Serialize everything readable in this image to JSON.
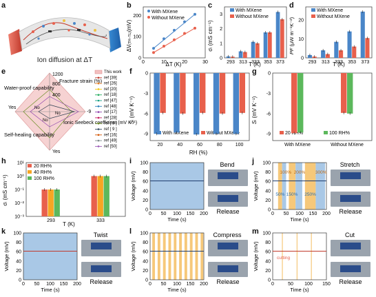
{
  "labels": {
    "a": "a",
    "b": "b",
    "c": "c",
    "d": "d",
    "e": "e",
    "f": "f",
    "g": "g",
    "h": "h",
    "i": "i",
    "j": "j",
    "k": "k",
    "l": "l",
    "m": "m"
  },
  "colors": {
    "blue": "#4a86c8",
    "red": "#e8604c",
    "green": "#5cb85c",
    "orange": "#f6c87a",
    "lightblue": "#a9c8e6",
    "pink": "#f3c0c0",
    "darkred": "#c0392b",
    "olive": "#6b8e23"
  },
  "panel_a": {
    "caption": "Ion diffusion at ΔT"
  },
  "panel_b": {
    "ylabel": "ΔV",
    "ylabel_sub": "(TH−TL)",
    "ylabel_unit": "(mV)",
    "xlabel": "ΔT (K)",
    "legend": [
      "With MXene",
      "Without MXene"
    ],
    "yticks": [
      "0",
      "100",
      "200"
    ],
    "xticks": [
      "0",
      "10",
      "20",
      "30"
    ]
  },
  "panel_c": {
    "ylabel": "σ",
    "ylabel_sub": "i",
    "ylabel_unit": "(mS cm⁻¹)",
    "xlabel": "T (K)",
    "legend": [
      "With MXene",
      "Without MXene"
    ],
    "yticks": [
      "0",
      "1",
      "2",
      "3"
    ],
    "xticks": [
      "293",
      "313",
      "333",
      "353",
      "373"
    ]
  },
  "panel_d": {
    "ylabel": "PF",
    "ylabel_unit": "(μW m⁻¹K⁻²)",
    "xlabel": "T (K)",
    "legend": [
      "With MXene",
      "Without MXene"
    ],
    "yticks": [
      "0",
      "10",
      "20"
    ],
    "xticks": [
      "293",
      "313",
      "333",
      "353",
      "373"
    ]
  },
  "panel_e": {
    "axes": [
      "Water-proof capability",
      "Fracture strain (%)",
      "Ionic Seebeck coefficient (mV K⁻¹)",
      "Self-healing capability"
    ],
    "ticks": [
      "1200",
      "800",
      "400"
    ],
    "tick_ionic": "-9",
    "yes_no": [
      "Yes",
      "No",
      "No",
      "Yes",
      "No"
    ],
    "legend": [
      "This work",
      "ref [39]",
      "ref [26]",
      "ref [20]",
      "ref [18]",
      "ref [47]",
      "ref [48]",
      "ref [17]",
      "ref [28]",
      "ref [ 8 ]",
      "ref [ 9 ]",
      "ref [16]",
      "ref [49]",
      "ref [50]"
    ]
  },
  "panel_f": {
    "ylabel": "S",
    "ylabel_sub": "i",
    "ylabel_unit": "(mV K⁻¹)",
    "xlabel": "RH (%)",
    "legend": [
      "With MXene",
      "Without MXene"
    ],
    "yticks": [
      "0",
      "-3",
      "-6",
      "-9"
    ],
    "xticks": [
      "20",
      "40",
      "60",
      "80",
      "100"
    ]
  },
  "panel_g": {
    "ylabel": "S",
    "ylabel_sub": "i",
    "ylabel_unit": "(mV K⁻¹)",
    "legend": [
      "20 RH%",
      "100 RH%"
    ],
    "yticks": [
      "0",
      "-3",
      "-6",
      "-9"
    ],
    "xticks": [
      "With MXene",
      "Without MXene"
    ]
  },
  "panel_h": {
    "ylabel": "σ",
    "ylabel_sub": "i",
    "ylabel_unit": "(mS cm⁻¹)",
    "xlabel": "T (K)",
    "legend": [
      "20 RH%",
      "40 RH%",
      "100 RH%"
    ],
    "yticks": [
      "10⁰",
      "10⁻¹",
      "10⁻²",
      "10⁻³"
    ],
    "yticks_top": "10¹",
    "xticks": [
      "293",
      "333"
    ]
  },
  "volt_panels": {
    "ylabel": "Voltage (mV)",
    "xlabel": "Time (s)",
    "yticks": [
      "0",
      "20",
      "40",
      "60",
      "80",
      "100"
    ],
    "xticks200": [
      "0",
      "50",
      "100",
      "150",
      "200"
    ],
    "xticks150": [
      "0",
      "50",
      "100",
      "150"
    ]
  },
  "panel_i": {
    "title": "Bend",
    "sub": "Release"
  },
  "panel_j": {
    "title": "Stretch",
    "sub": "Release",
    "strains": [
      "100%",
      "200%",
      "300%",
      "50%",
      "150%",
      "250%"
    ]
  },
  "panel_k": {
    "title": "Twist",
    "sub": "Release"
  },
  "panel_l": {
    "title": "Compress",
    "sub": "Release"
  },
  "panel_m": {
    "title": "Cut",
    "sub": "Release",
    "annotation": "cutting"
  },
  "chart_data": [
    {
      "panel": "b",
      "type": "scatter",
      "title": "",
      "xlabel": "ΔT (K)",
      "ylabel": "ΔV(TH−TL) (mV)",
      "xlim": [
        0,
        30
      ],
      "ylim": [
        0,
        240
      ],
      "series": [
        {
          "name": "With MXene",
          "x": [
            5,
            10,
            15,
            20,
            25
          ],
          "y": [
            45,
            90,
            130,
            170,
            205
          ]
        },
        {
          "name": "Without MXene",
          "x": [
            5,
            10,
            15,
            20,
            25
          ],
          "y": [
            25,
            55,
            85,
            115,
            140
          ]
        }
      ]
    },
    {
      "panel": "c",
      "type": "bar",
      "xlabel": "T (K)",
      "ylabel": "σi (mS cm⁻¹)",
      "ylim": [
        0,
        3.5
      ],
      "categories": [
        "293",
        "313",
        "333",
        "353",
        "373"
      ],
      "series": [
        {
          "name": "With MXene",
          "values": [
            0.1,
            0.45,
            1.1,
            1.75,
            3.15
          ]
        },
        {
          "name": "Without MXene",
          "values": [
            0.08,
            0.4,
            1.0,
            1.75,
            2.65
          ]
        }
      ]
    },
    {
      "panel": "d",
      "type": "bar",
      "xlabel": "T (K)",
      "ylabel": "PF (μW m⁻¹K⁻²)",
      "ylim": [
        0,
        27
      ],
      "categories": [
        "293",
        "313",
        "333",
        "353",
        "373"
      ],
      "series": [
        {
          "name": "With MXene",
          "values": [
            1.5,
            4,
            8.5,
            14,
            24.5
          ]
        },
        {
          "name": "Without MXene",
          "values": [
            0.7,
            2,
            4,
            6,
            10.5
          ]
        }
      ]
    },
    {
      "panel": "f",
      "type": "bar",
      "xlabel": "RH (%)",
      "ylabel": "Si (mV K⁻¹)",
      "ylim": [
        -10,
        0
      ],
      "categories": [
        "20",
        "40",
        "60",
        "80",
        "100"
      ],
      "series": [
        {
          "name": "With MXene",
          "values": [
            -9,
            -8.8,
            -9.1,
            -9,
            -9
          ]
        },
        {
          "name": "Without MXene",
          "values": [
            -5.9,
            -6,
            -5.9,
            -6,
            -5.9
          ]
        }
      ]
    },
    {
      "panel": "g",
      "type": "bar",
      "ylabel": "Si (mV K⁻¹)",
      "ylim": [
        -10,
        0
      ],
      "categories": [
        "With MXene",
        "Without MXene"
      ],
      "series": [
        {
          "name": "20 RH%",
          "values": [
            -8.9,
            -5.9
          ]
        },
        {
          "name": "100 RH%",
          "values": [
            -8.8,
            -6.0
          ]
        }
      ]
    },
    {
      "panel": "h",
      "type": "bar",
      "xlabel": "T (K)",
      "ylabel": "σi (mS cm⁻¹)",
      "ylim": [
        0.001,
        10
      ],
      "categories": [
        "293",
        "333"
      ],
      "series": [
        {
          "name": "20 RH%",
          "values": [
            0.1,
            1.0
          ]
        },
        {
          "name": "40 RH%",
          "values": [
            0.1,
            1.0
          ]
        },
        {
          "name": "100 RH%",
          "values": [
            0.1,
            1.0
          ]
        }
      ]
    },
    {
      "panel": "i",
      "type": "line",
      "xlabel": "Time (s)",
      "ylabel": "Voltage (mV)",
      "xlim": [
        0,
        200
      ],
      "ylim": [
        0,
        100
      ],
      "series": [
        {
          "x": [
            0,
            200
          ],
          "y": [
            61,
            61
          ]
        }
      ]
    },
    {
      "panel": "j",
      "type": "line",
      "xlabel": "Time (s)",
      "ylabel": "Voltage (mV)",
      "xlim": [
        0,
        200
      ],
      "ylim": [
        0,
        100
      ],
      "series": [
        {
          "x": [
            0,
            200
          ],
          "y": [
            61,
            61
          ]
        }
      ]
    },
    {
      "panel": "k",
      "type": "line",
      "xlabel": "Time (s)",
      "ylabel": "Voltage (mV)",
      "xlim": [
        0,
        200
      ],
      "ylim": [
        0,
        100
      ],
      "series": [
        {
          "x": [
            0,
            200
          ],
          "y": [
            61,
            61
          ]
        }
      ]
    },
    {
      "panel": "l",
      "type": "line",
      "xlabel": "Time (s)",
      "ylabel": "Voltage (mV)",
      "xlim": [
        0,
        200
      ],
      "ylim": [
        0,
        100
      ],
      "series": [
        {
          "x": [
            0,
            200
          ],
          "y": [
            61,
            61
          ]
        }
      ]
    },
    {
      "panel": "m",
      "type": "line",
      "xlabel": "Time (s)",
      "ylabel": "Voltage (mV)",
      "xlim": [
        0,
        150
      ],
      "ylim": [
        0,
        100
      ],
      "series": [
        {
          "x": [
            0,
            150
          ],
          "y": [
            61,
            61
          ]
        }
      ]
    }
  ]
}
